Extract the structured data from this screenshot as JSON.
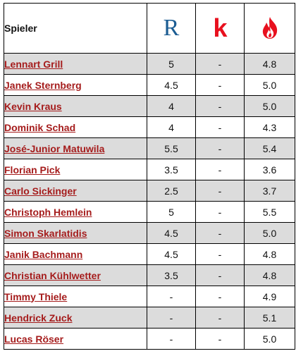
{
  "header": {
    "player_label": "Spieler",
    "logo_r_text": "R",
    "logo_k_text": "k",
    "accent_r": "#1c5d93",
    "accent_k": "#e8101e",
    "accent_flame": "#e8101e"
  },
  "rows": [
    {
      "name": "Lennart Grill",
      "r": "5",
      "k": "-",
      "f": "4.8"
    },
    {
      "name": "Janek Sternberg",
      "r": "4.5",
      "k": "-",
      "f": "5.0"
    },
    {
      "name": "Kevin Kraus",
      "r": "4",
      "k": "-",
      "f": "5.0"
    },
    {
      "name": "Dominik Schad",
      "r": "4",
      "k": "-",
      "f": "4.3"
    },
    {
      "name": "José-Junior Matuwila",
      "r": "5.5",
      "k": "-",
      "f": "5.4"
    },
    {
      "name": "Florian Pick",
      "r": "3.5",
      "k": "-",
      "f": "3.6"
    },
    {
      "name": "Carlo Sickinger",
      "r": "2.5",
      "k": "-",
      "f": "3.7"
    },
    {
      "name": "Christoph Hemlein",
      "r": "5",
      "k": "-",
      "f": "5.5"
    },
    {
      "name": "Simon Skarlatidis",
      "r": "4.5",
      "k": "-",
      "f": "5.0"
    },
    {
      "name": "Janik Bachmann",
      "r": "4.5",
      "k": "-",
      "f": "4.8"
    },
    {
      "name": "Christian Kühlwetter",
      "r": "3.5",
      "k": "-",
      "f": "4.8"
    },
    {
      "name": "Timmy Thiele",
      "r": "-",
      "k": "-",
      "f": "4.9"
    },
    {
      "name": "Hendrick Zuck",
      "r": "-",
      "k": "-",
      "f": "5.1"
    },
    {
      "name": "Lucas Röser",
      "r": "-",
      "k": "-",
      "f": "5.0"
    }
  ]
}
